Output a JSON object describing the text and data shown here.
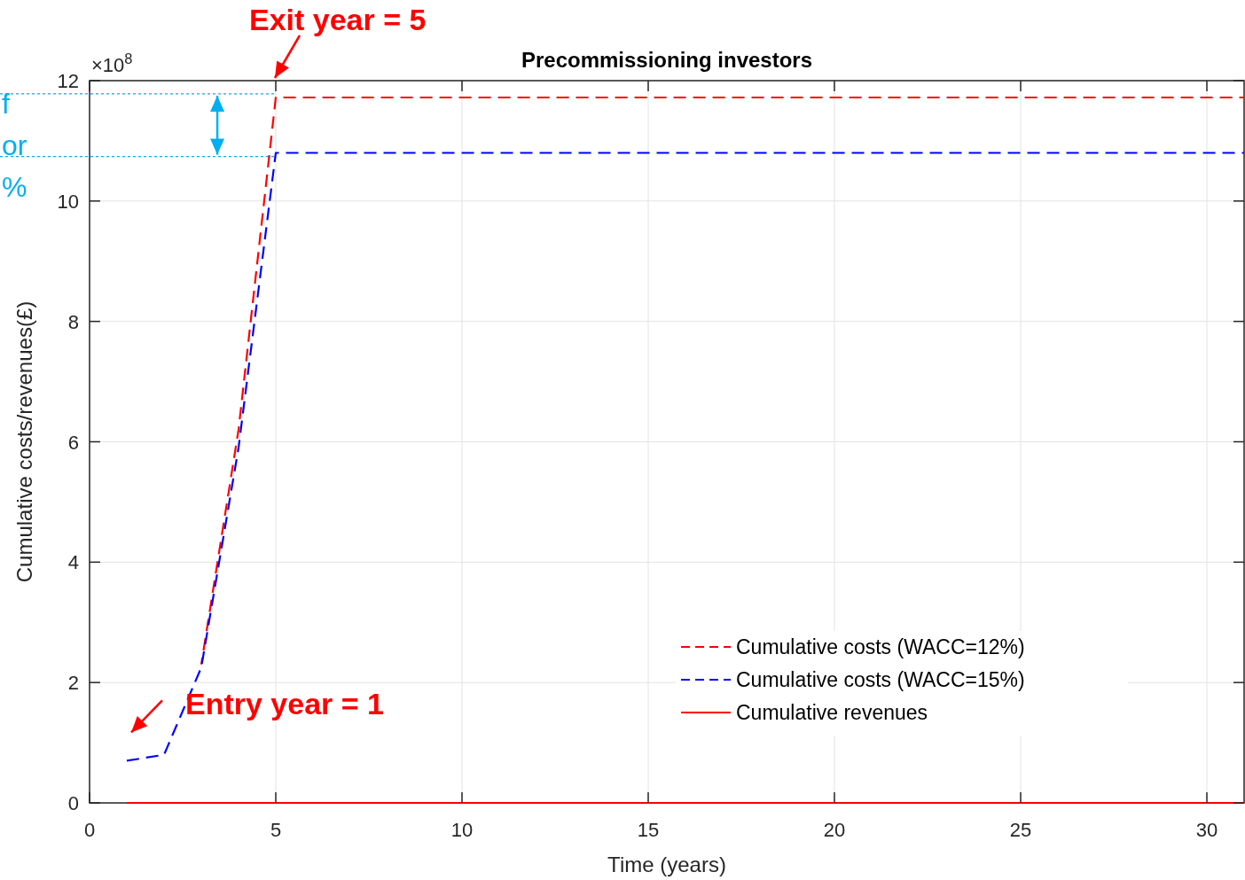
{
  "chart_data": {
    "type": "line",
    "title": "Precommissioning investors",
    "xlabel": "Time (years)",
    "ylabel": "Cumulative costs/revenues(£)",
    "x": [
      1,
      2,
      3,
      4,
      5,
      31
    ],
    "series": [
      {
        "name": "Cumulative costs (WACC=12%)",
        "color": "#ff0000",
        "line_style": "dashed",
        "values": [
          null,
          null,
          2.3,
          6.2,
          11.72,
          11.72
        ]
      },
      {
        "name": "Cumulative costs (WACC=15%)",
        "color": "#0000ff",
        "line_style": "dashed",
        "values": [
          0.7,
          0.8,
          2.25,
          5.9,
          10.8,
          10.8
        ]
      },
      {
        "name": "Cumulative revenues",
        "color": "#ff0000",
        "line_style": "solid",
        "values": [
          0,
          0,
          0,
          0,
          0,
          0
        ]
      }
    ],
    "xlim": [
      0,
      31
    ],
    "xticks": [
      0,
      5,
      10,
      15,
      20,
      25,
      30
    ],
    "ylim": [
      0,
      12
    ],
    "yticks": [
      0,
      2,
      4,
      6,
      8,
      10,
      12
    ],
    "grid": true,
    "legend": "bottom right",
    "ref_lines": [
      {
        "axis": "y",
        "value": 11.78,
        "color": "#00b0f0",
        "line_style": "dotted"
      },
      {
        "axis": "y",
        "value": 10.74,
        "color": "#00b0f0",
        "line_style": "dotted"
      }
    ],
    "annotations": [
      "Exit year = 5",
      {
        "text": "Entry year = 1",
        "x": 1,
        "y": 0.7
      },
      "×10$^{8}$",
      "f",
      "or",
      "%"
    ]
  }
}
